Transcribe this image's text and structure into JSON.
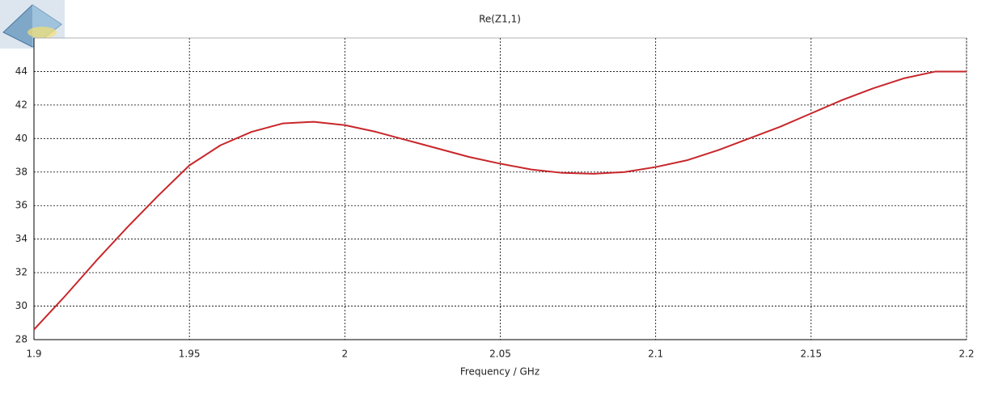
{
  "chart_data": {
    "type": "line",
    "title": "Re(Z1,1)",
    "x_label": "Frequency / GHz",
    "x": [
      1.9,
      1.91,
      1.92,
      1.93,
      1.94,
      1.95,
      1.96,
      1.97,
      1.98,
      1.99,
      2.0,
      2.01,
      2.02,
      2.03,
      2.04,
      2.05,
      2.06,
      2.07,
      2.08,
      2.09,
      2.1,
      2.11,
      2.12,
      2.13,
      2.14,
      2.15,
      2.16,
      2.17,
      2.18,
      2.19,
      2.2
    ],
    "series": [
      {
        "color": "#c8262a",
        "values": [
          28.6,
          30.6,
          32.7,
          34.7,
          36.6,
          38.4,
          39.6,
          40.4,
          40.9,
          41.0,
          40.8,
          40.4,
          39.9,
          39.4,
          38.9,
          38.5,
          38.15,
          37.95,
          37.9,
          38.0,
          38.3,
          38.7,
          39.3,
          40.0,
          40.7,
          41.5,
          42.3,
          43.0,
          43.6,
          44.0,
          44.0
        ]
      }
    ],
    "xlim": [
      1.9,
      2.2
    ],
    "xticks": [
      1.9,
      1.95,
      2,
      2.05,
      2.1,
      2.15,
      2.2
    ],
    "ylim": [
      28,
      46
    ],
    "yticks": [
      28,
      30,
      32,
      34,
      36,
      38,
      40,
      42,
      44
    ],
    "grid": true
  }
}
